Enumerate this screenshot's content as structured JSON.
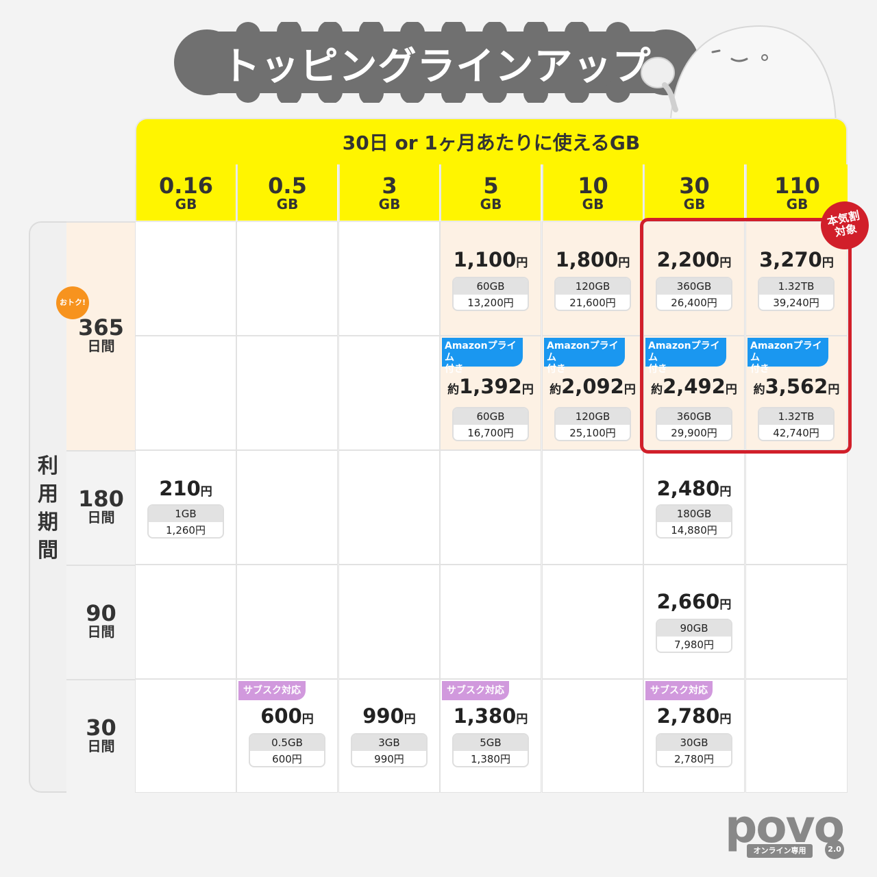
{
  "title": "トッピングラインアップ",
  "header": {
    "band": "30日 or 1ヶ月あたりに使えるGB",
    "columns": [
      {
        "n": "0.16",
        "u": "GB"
      },
      {
        "n": "0.5",
        "u": "GB"
      },
      {
        "n": "3",
        "u": "GB"
      },
      {
        "n": "5",
        "u": "GB"
      },
      {
        "n": "10",
        "u": "GB"
      },
      {
        "n": "30",
        "u": "GB"
      },
      {
        "n": "110",
        "u": "GB"
      }
    ]
  },
  "period_label": "利用期間",
  "rows": [
    {
      "n": "365",
      "u": "日間"
    },
    {
      "n": "180",
      "u": "日間"
    },
    {
      "n": "90",
      "u": "日間"
    },
    {
      "n": "30",
      "u": "日間"
    }
  ],
  "badges": {
    "otoku": "おトク!",
    "honki_line1": "本気割",
    "honki_line2": "対象",
    "amazon_line1": "Amazonプライム",
    "amazon_line2": "付き",
    "subsc": "サブスク対応",
    "approx": "約",
    "yen": "円"
  },
  "cells": {
    "r365a_5": {
      "price": "1,100",
      "gb": "60GB",
      "total": "13,200円"
    },
    "r365a_10": {
      "price": "1,800",
      "gb": "120GB",
      "total": "21,600円"
    },
    "r365a_30": {
      "price": "2,200",
      "gb": "360GB",
      "total": "26,400円"
    },
    "r365a_110": {
      "price": "3,270",
      "gb": "1.32TB",
      "total": "39,240円"
    },
    "r365b_5": {
      "price": "1,392",
      "gb": "60GB",
      "total": "16,700円"
    },
    "r365b_10": {
      "price": "2,092",
      "gb": "120GB",
      "total": "25,100円"
    },
    "r365b_30": {
      "price": "2,492",
      "gb": "360GB",
      "total": "29,900円"
    },
    "r365b_110": {
      "price": "3,562",
      "gb": "1.32TB",
      "total": "42,740円"
    },
    "r180_016": {
      "price": "210",
      "gb": "1GB",
      "total": "1,260円"
    },
    "r180_30": {
      "price": "2,480",
      "gb": "180GB",
      "total": "14,880円"
    },
    "r90_30": {
      "price": "2,660",
      "gb": "90GB",
      "total": "7,980円"
    },
    "r30_05": {
      "price": "600",
      "gb": "0.5GB",
      "total": "600円"
    },
    "r30_3": {
      "price": "990",
      "gb": "3GB",
      "total": "990円"
    },
    "r30_5": {
      "price": "1,380",
      "gb": "5GB",
      "total": "1,380円"
    },
    "r30_30": {
      "price": "2,780",
      "gb": "30GB",
      "total": "2,780円"
    }
  },
  "logo": {
    "word": "povo",
    "tag": "オンライン専用",
    "version": "2.0"
  }
}
